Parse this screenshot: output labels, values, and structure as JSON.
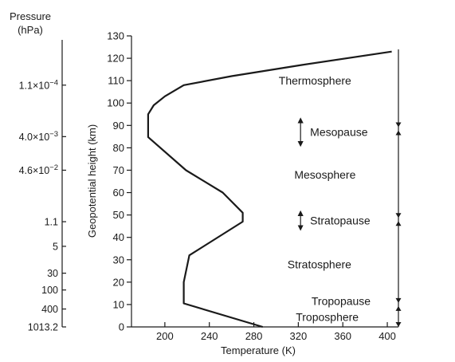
{
  "chart_data": {
    "type": "line",
    "xlabel": "Temperature (K)",
    "ylabel": "Geopotential height (km)",
    "xlim": [
      170,
      410
    ],
    "ylim": [
      0,
      130
    ],
    "x_ticks": [
      200,
      240,
      280,
      320,
      360,
      400
    ],
    "y_ticks": [
      0,
      10,
      20,
      30,
      40,
      50,
      60,
      70,
      80,
      90,
      100,
      110,
      120,
      130
    ],
    "series": [
      {
        "x": [
          288,
          217,
          217,
          222,
          270,
          270,
          252,
          219,
          185,
          185,
          190,
          200,
          217,
          260,
          323,
          404
        ],
        "y": [
          0,
          10.5,
          20,
          32,
          47,
          51,
          60,
          70,
          84.8,
          95,
          99,
          103,
          108,
          112,
          117,
          123
        ]
      }
    ],
    "pressure_axis": {
      "title_line1": "Pressure",
      "title_line2": "(hPa)",
      "labels": [
        {
          "text": "1.1×10",
          "sup": "−4",
          "height": 108
        },
        {
          "text": "4.0×10",
          "sup": "−3",
          "height": 85
        },
        {
          "text": "4.6×10",
          "sup": "−2",
          "height": 70
        },
        {
          "text": "1.1",
          "sup": "",
          "height": 47
        },
        {
          "text": "5",
          "sup": "",
          "height": 36
        },
        {
          "text": "30",
          "sup": "",
          "height": 24
        },
        {
          "text": "100",
          "sup": "",
          "height": 16.5
        },
        {
          "text": "400",
          "sup": "",
          "height": 8
        },
        {
          "text": "1013.2",
          "sup": "",
          "height": 0
        }
      ]
    },
    "layers": [
      {
        "name": "Thermosphere",
        "height": 110,
        "x": 335
      },
      {
        "name": "Mesosphere",
        "height": 68,
        "x": 344
      },
      {
        "name": "Stratosphere",
        "height": 28,
        "x": 339
      },
      {
        "name": "Troposphere",
        "height": 4.5,
        "x": 346
      }
    ],
    "pauses": [
      {
        "name": "Mesopause",
        "height": 87,
        "arrow_x": 322,
        "arrow_span": [
          81,
          93
        ]
      },
      {
        "name": "Stratopause",
        "height": 47.5,
        "arrow_x": 322,
        "arrow_span": [
          43.5,
          51.5
        ]
      },
      {
        "name": "Tropopause",
        "height": 11.5
      }
    ],
    "boundary_arrows": {
      "x": 410,
      "top": 124,
      "heights": [
        88.5,
        48,
        10
      ]
    }
  }
}
